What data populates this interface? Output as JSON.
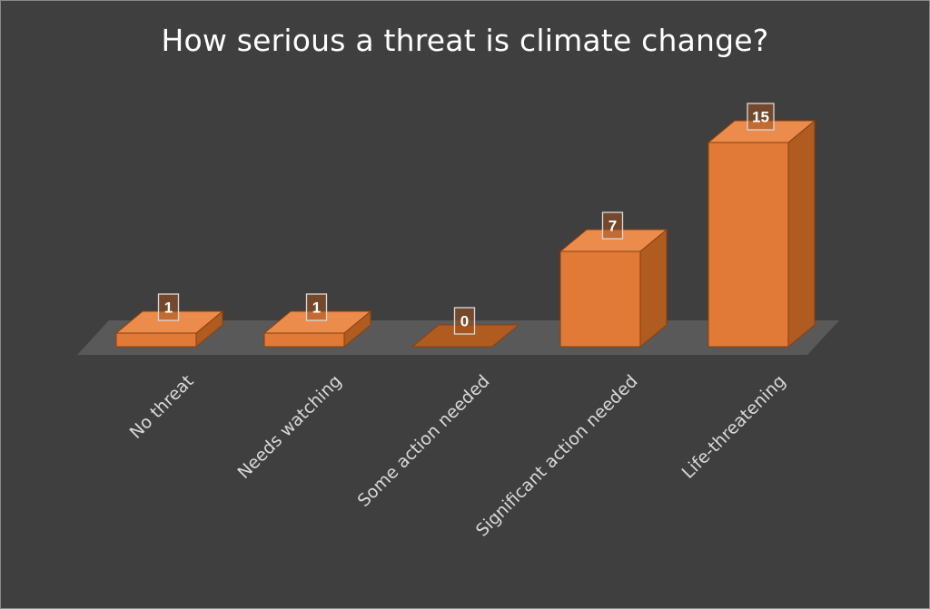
{
  "chart_data": {
    "type": "bar",
    "style": "3d-column",
    "title": "How serious a threat is climate change?",
    "categories": [
      "No threat",
      "Needs watching",
      "Some action needed",
      "Significant action needed",
      "Life-threatening"
    ],
    "values": [
      1,
      1,
      0,
      7,
      15
    ],
    "data_labels": [
      "1",
      "1",
      "0",
      "7",
      "15"
    ],
    "ylim": [
      0,
      15
    ],
    "grid": false,
    "legend": "none",
    "colors": {
      "background": "#3f3f3f",
      "bar_front": "#e07a36",
      "bar_top": "#eb8c4c",
      "bar_side": "#b05b20",
      "bar_edge": "#8a3f10",
      "floor": "#595959",
      "label_box_border": "#d9d9d9",
      "axis_text": "#d9d9d9",
      "title_text": "#ffffff"
    }
  }
}
